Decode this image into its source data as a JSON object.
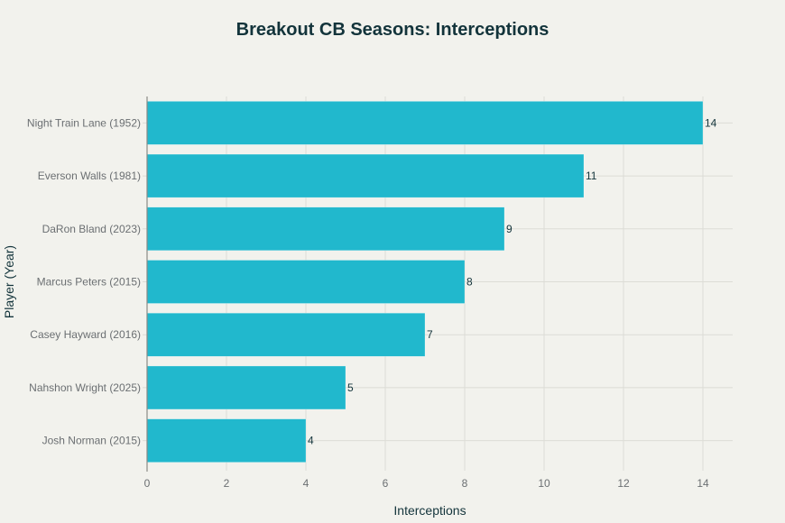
{
  "chart_data": {
    "type": "bar",
    "orientation": "horizontal",
    "title": "Breakout CB Seasons: Interceptions",
    "xlabel": "Interceptions",
    "ylabel": "Player (Year)",
    "categories": [
      "Night Train Lane (1952)",
      "Everson Walls (1981)",
      "DaRon Bland (2023)",
      "Marcus Peters (2015)",
      "Casey Hayward (2016)",
      "Nahshon Wright (2025)",
      "Josh Norman (2015)"
    ],
    "values": [
      14,
      11,
      9,
      8,
      7,
      5,
      4
    ],
    "data_labels": [
      "14",
      "11",
      "9",
      "8",
      "7",
      "5",
      "4"
    ],
    "xlim": [
      0,
      14.75
    ],
    "xticks": [
      0,
      2,
      4,
      6,
      8,
      10,
      12,
      14
    ],
    "xtick_labels": [
      "0",
      "2",
      "4",
      "6",
      "8",
      "10",
      "12",
      "14"
    ],
    "grid": true,
    "bar_color": "#21b8cd",
    "text_color": "#13343b",
    "background_color": "#f2f2ed"
  }
}
